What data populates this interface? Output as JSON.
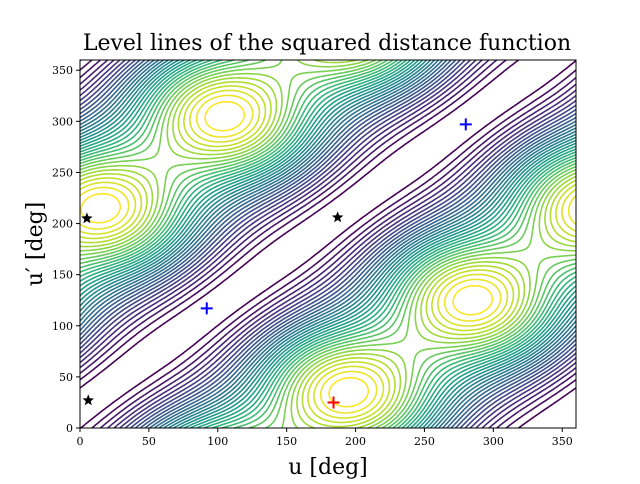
{
  "chart_data": {
    "type": "contour",
    "title": "Level lines of the squared distance function",
    "xlabel": "u [deg]",
    "ylabel": "u′ [deg]",
    "xlim": [
      0,
      360
    ],
    "ylim": [
      0,
      360
    ],
    "xticks": [
      0,
      50,
      100,
      150,
      200,
      250,
      300,
      350
    ],
    "yticks": [
      0,
      50,
      100,
      150,
      200,
      250,
      300,
      350
    ],
    "grid": false,
    "colormap": "viridis",
    "markers": [
      {
        "kind": "star",
        "color": "#000000",
        "x": 5,
        "y": 205
      },
      {
        "kind": "star",
        "color": "#000000",
        "x": 6,
        "y": 27
      },
      {
        "kind": "star",
        "color": "#000000",
        "x": 187,
        "y": 206
      },
      {
        "kind": "plus",
        "color": "#0000ff",
        "x": 92,
        "y": 117
      },
      {
        "kind": "plus",
        "color": "#0000ff",
        "x": 280,
        "y": 297
      },
      {
        "kind": "plus",
        "color": "#ff0000",
        "x": 184,
        "y": 25
      }
    ]
  }
}
